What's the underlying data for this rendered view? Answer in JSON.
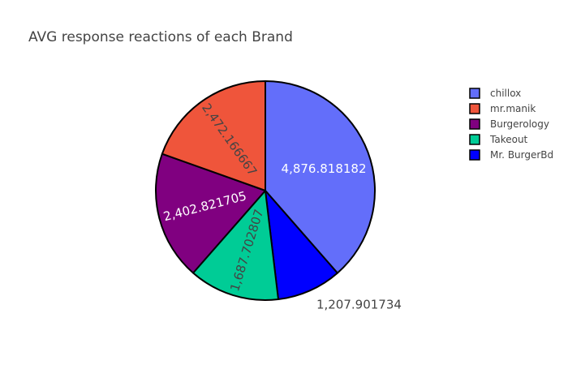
{
  "chart_data": {
    "type": "pie",
    "title": "AVG response reactions of each Brand",
    "legend_position": "top-right",
    "slices": [
      {
        "label": "chillox",
        "value": 4876.818182,
        "text": "4,876.818182",
        "color": "#636efa"
      },
      {
        "label": "mr.manik",
        "value": 2472.166667,
        "text": "2,472.166667",
        "color": "#ef553b"
      },
      {
        "label": "Burgerology",
        "value": 2402.821705,
        "text": "2,402.821705",
        "color": "#800080"
      },
      {
        "label": "Takeout",
        "value": 1687.702807,
        "text": "1,687.702807",
        "color": "#00cc96"
      },
      {
        "label": "Mr. BurgerBd",
        "value": 1207.901734,
        "text": "1,207.901734",
        "color": "#0000ff"
      }
    ],
    "display_order": [
      "chillox",
      "Mr. BurgerBd",
      "Takeout",
      "Burgerology",
      "mr.manik"
    ],
    "outside_labels": [
      "Mr. BurgerBd"
    ],
    "slice_outline_color": "#000000",
    "text_color_dark": "#444444",
    "text_color_light": "#ffffff",
    "title_color": "#444444"
  }
}
